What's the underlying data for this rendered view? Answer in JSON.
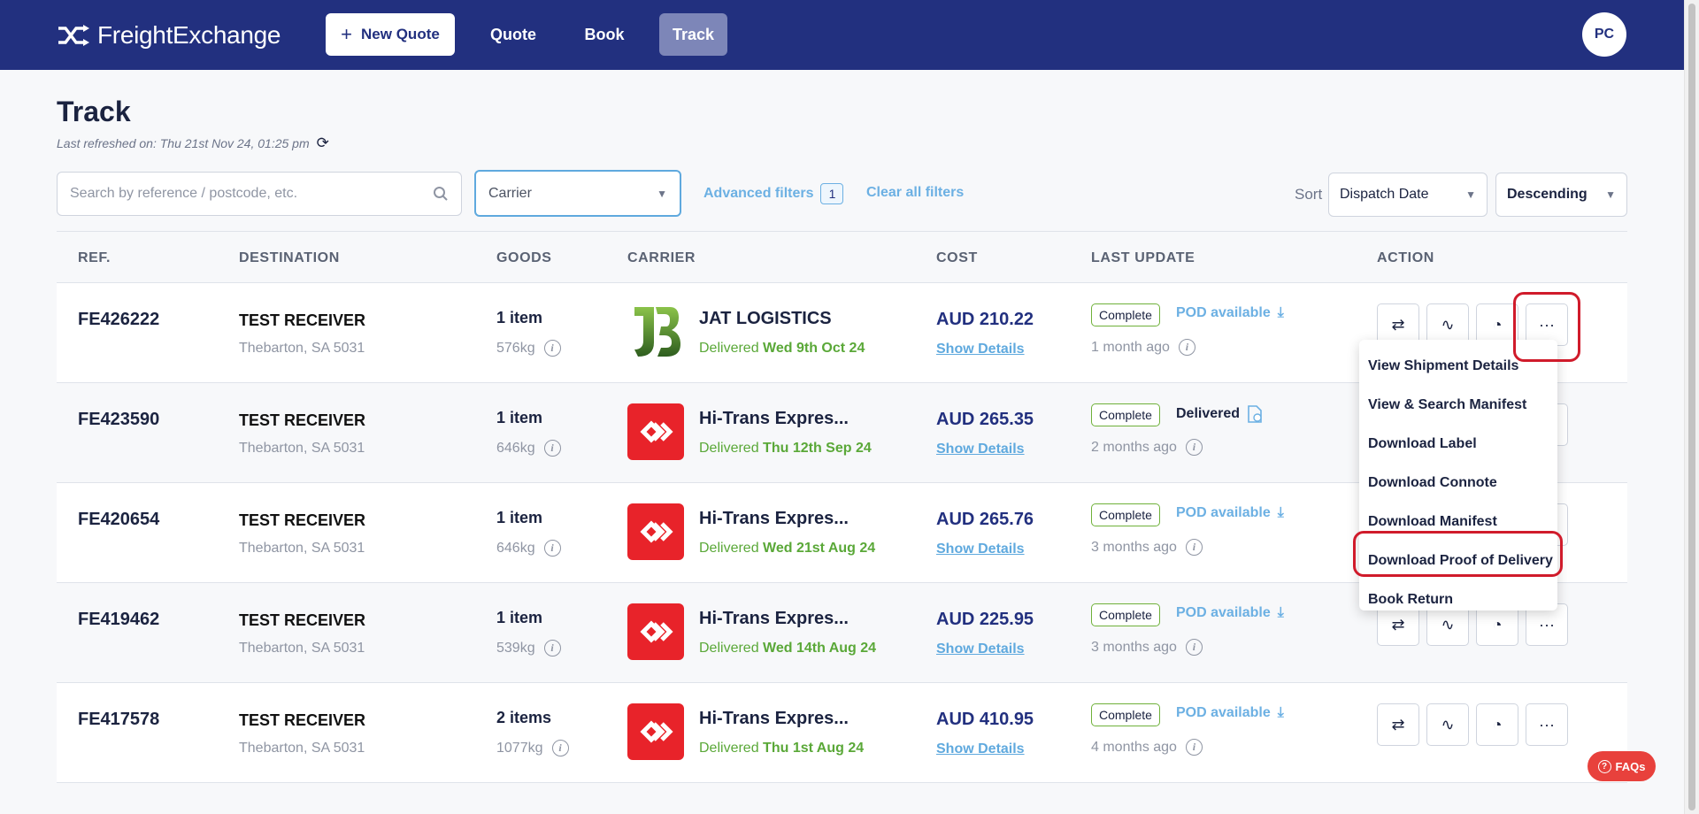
{
  "nav": {
    "brand": "FreightExchange",
    "new_quote": "New Quote",
    "links": [
      "Quote",
      "Book",
      "Track"
    ],
    "avatar": "PC"
  },
  "header": {
    "title": "Track",
    "refreshed": "Last refreshed on: Thu 21st Nov 24, 01:25 pm"
  },
  "filters": {
    "search_placeholder": "Search by reference / postcode, etc.",
    "carrier_placeholder": "Carrier",
    "advanced_label": "Advanced filters",
    "advanced_count": "1",
    "clear_label": "Clear all filters",
    "sort_label": "Sort",
    "sort_field": "Dispatch Date",
    "sort_order": "Descending"
  },
  "columns": [
    "REF.",
    "DESTINATION",
    "GOODS",
    "CARRIER",
    "COST",
    "LAST UPDATE",
    "ACTION"
  ],
  "rows": [
    {
      "ref": "FE426222",
      "dest": "TEST RECEIVER",
      "dest_sub": "Thebarton, SA 5031",
      "items": "1 item",
      "weight": "576kg",
      "carrier": "JAT LOGISTICS",
      "delivered_prefix": "Delivered",
      "delivered_date": "Wed 9th Oct 24",
      "cost": "AUD 210.22",
      "details": "Show Details",
      "badge": "Complete",
      "pod": "POD available",
      "ago": "1 month ago"
    },
    {
      "ref": "FE423590",
      "dest": "TEST RECEIVER",
      "dest_sub": "Thebarton, SA 5031",
      "items": "1 item",
      "weight": "646kg",
      "carrier": "Hi-Trans Expres...",
      "delivered_prefix": "Delivered",
      "delivered_date": "Thu 12th Sep 24",
      "cost": "AUD 265.35",
      "details": "Show Details",
      "badge": "Complete",
      "pod": "Delivered",
      "ago": "2 months ago"
    },
    {
      "ref": "FE420654",
      "dest": "TEST RECEIVER",
      "dest_sub": "Thebarton, SA 5031",
      "items": "1 item",
      "weight": "646kg",
      "carrier": "Hi-Trans Expres...",
      "delivered_prefix": "Delivered",
      "delivered_date": "Wed 21st Aug 24",
      "cost": "AUD 265.76",
      "details": "Show Details",
      "badge": "Complete",
      "pod": "POD available",
      "ago": "3 months ago"
    },
    {
      "ref": "FE419462",
      "dest": "TEST RECEIVER",
      "dest_sub": "Thebarton, SA 5031",
      "items": "1 item",
      "weight": "539kg",
      "carrier": "Hi-Trans Expres...",
      "delivered_prefix": "Delivered",
      "delivered_date": "Wed 14th Aug 24",
      "cost": "AUD 225.95",
      "details": "Show Details",
      "badge": "Complete",
      "pod": "POD available",
      "ago": "3 months ago"
    },
    {
      "ref": "FE417578",
      "dest": "TEST RECEIVER",
      "dest_sub": "Thebarton, SA 5031",
      "items": "2 items",
      "weight": "1077kg",
      "carrier": "Hi-Trans Expres...",
      "delivered_prefix": "Delivered",
      "delivered_date": "Thu 1st Aug 24",
      "cost": "AUD 410.95",
      "details": "Show Details",
      "badge": "Complete",
      "pod": "POD available",
      "ago": "4 months ago"
    }
  ],
  "menu": [
    "View Shipment Details",
    "View & Search Manifest",
    "Download Label",
    "Download Connote",
    "Download Manifest",
    "Download Proof of Delivery",
    "Book Return"
  ],
  "faqs": "FAQs",
  "colors": {
    "nav": "#22307f",
    "accent": "#5fa9de",
    "delivered": "#5aa838",
    "highlight": "#d01b2b"
  }
}
